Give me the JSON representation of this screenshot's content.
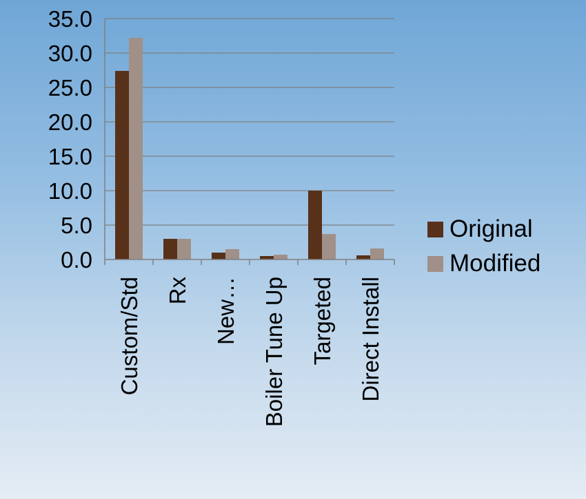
{
  "chart_data": {
    "type": "bar",
    "categories": [
      "Custom/Std",
      "Rx",
      "New…",
      "Boiler Tune Up",
      "Targeted",
      "Direct Install"
    ],
    "series": [
      {
        "name": "Original",
        "values": [
          27.4,
          3.0,
          1.0,
          0.5,
          10.0,
          0.6
        ],
        "color": "#58311a"
      },
      {
        "name": "Modified",
        "values": [
          32.2,
          3.0,
          1.5,
          0.7,
          3.7,
          1.6
        ],
        "color": "#a09088"
      }
    ],
    "yticks": [
      "0.0",
      "5.0",
      "10.0",
      "15.0",
      "20.0",
      "25.0",
      "30.0",
      "35.0"
    ],
    "ylim": [
      0,
      35
    ],
    "grid": true,
    "legend_position": "right"
  }
}
